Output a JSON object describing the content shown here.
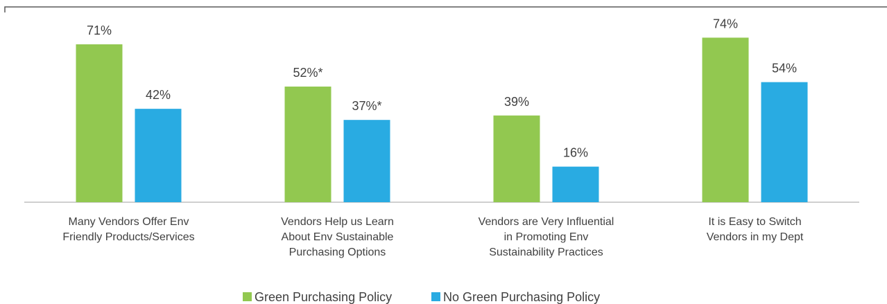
{
  "chart_data": {
    "type": "bar",
    "categories": [
      "Many Vendors Offer Env\nFriendly Products/Services",
      "Vendors Help us Learn\nAbout Env Sustainable\nPurchasing Options",
      "Vendors are Very Influential\nin Promoting Env\nSustainability Practices",
      "It is Easy to Switch\nVendors in my Dept"
    ],
    "series": [
      {
        "name": "Green Purchasing Policy",
        "color": "#92c850",
        "values": [
          71,
          52,
          39,
          74
        ],
        "value_labels": [
          "71%",
          "52%*",
          "39%",
          "74%"
        ]
      },
      {
        "name": "No Green Purchasing Policy",
        "color": "#29abe2",
        "values": [
          42,
          37,
          16,
          54
        ],
        "value_labels": [
          "42%",
          "37%*",
          "16%",
          "54%"
        ]
      }
    ],
    "ylim": [
      0,
      90
    ],
    "legend": "bottom"
  }
}
